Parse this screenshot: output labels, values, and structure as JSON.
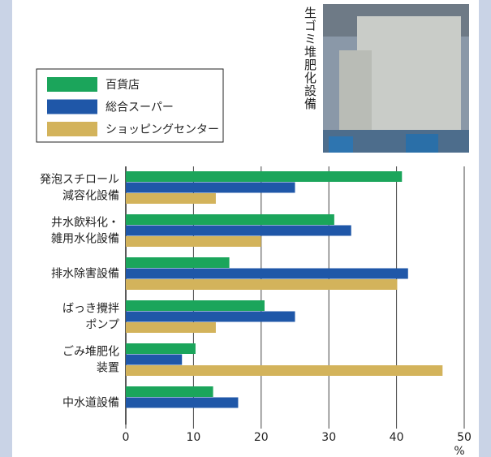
{
  "chart_data": {
    "type": "bar",
    "orientation": "horizontal",
    "photo_caption": "生ゴミ堆肥化設備",
    "categories": [
      [
        "発泡スチロール",
        "減容化設備"
      ],
      [
        "井水飲料化・",
        "雑用水化設備"
      ],
      [
        "排水除害設備"
      ],
      [
        "ばっき攪拌",
        "ポンプ"
      ],
      [
        "ごみ堆肥化",
        "装置"
      ],
      [
        "中水道設備"
      ]
    ],
    "series": [
      {
        "name": "百貨店",
        "color": "#1ba55b",
        "values": [
          40.8,
          30.8,
          15.3,
          20.5,
          10.3,
          12.9
        ]
      },
      {
        "name": "総合スーパー",
        "color": "#1f57a8",
        "values": [
          25,
          33.3,
          41.7,
          25,
          8.3,
          16.6
        ]
      },
      {
        "name": "ショッピングセンター",
        "color": "#d3b35b",
        "values": [
          13.3,
          20,
          40.1,
          13.3,
          46.8,
          null
        ]
      }
    ],
    "xlim": [
      0,
      50
    ],
    "xticks": [
      0,
      10,
      20,
      30,
      40,
      50
    ],
    "x_unit": "%",
    "grid": true
  }
}
